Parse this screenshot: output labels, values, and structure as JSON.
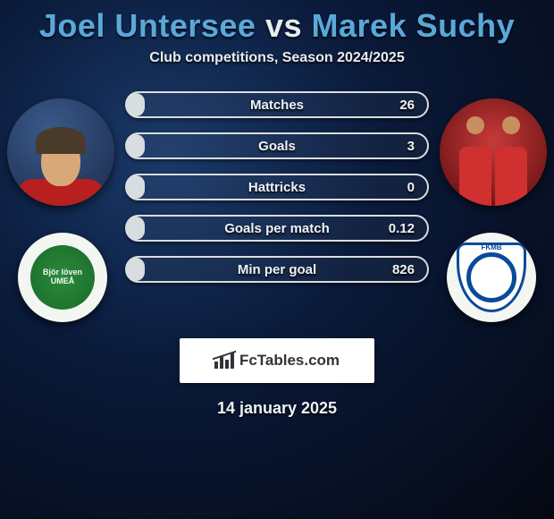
{
  "title": {
    "player1": "Joel Untersee",
    "vs": "vs",
    "player2": "Marek Suchy"
  },
  "subtitle": "Club competitions, Season 2024/2025",
  "stats": [
    {
      "label": "Matches",
      "value": "26",
      "fill_pct": 6,
      "fill_color": "#d8dde0"
    },
    {
      "label": "Goals",
      "value": "3",
      "fill_pct": 6,
      "fill_color": "#d8dde0"
    },
    {
      "label": "Hattricks",
      "value": "0",
      "fill_pct": 6,
      "fill_color": "#d8dde0"
    },
    {
      "label": "Goals per match",
      "value": "0.12",
      "fill_pct": 6,
      "fill_color": "#d8dde0"
    },
    {
      "label": "Min per goal",
      "value": "826",
      "fill_pct": 6,
      "fill_color": "#d8dde0"
    }
  ],
  "left_club_text": "Björ\nlöven\nUMEÅ",
  "right_club_text": "FKMB",
  "watermark": "FcTables.com",
  "date": "14 january 2025",
  "colors": {
    "accent": "#5aa8d8",
    "text": "#e8ecef",
    "bar_border": "#d8dde0",
    "bg_inner": "#1a3a6a",
    "bg_outer": "#050812"
  }
}
